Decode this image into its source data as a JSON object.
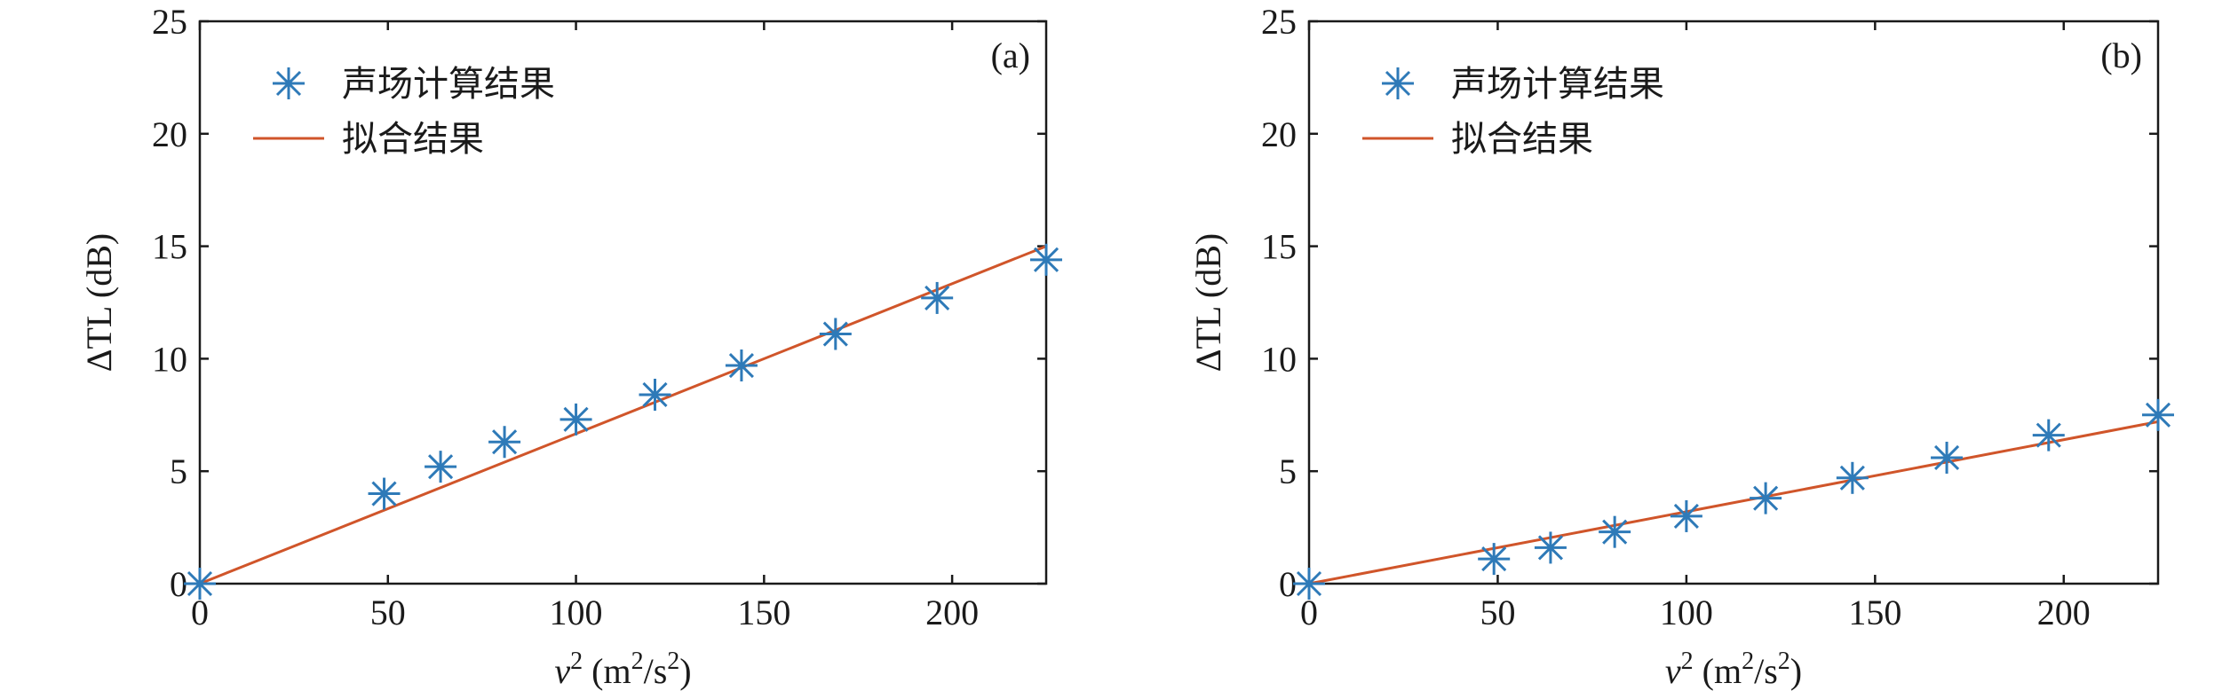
{
  "colors": {
    "marker": "#2e7ab8",
    "line": "#d0552a",
    "axis": "#1a1a1a"
  },
  "chart_data": [
    {
      "type": "scatter",
      "panel_label": "(a)",
      "xlabel_var": "v",
      "xlabel_sup": "2",
      "xlabel_units": " (m",
      "xlabel_units_sup": "2",
      "xlabel_units_mid": "/s",
      "xlabel_units_sup2": "2",
      "xlabel_units_end": ")",
      "ylabel": "ΔTL (dB)",
      "xlim": [
        0,
        225
      ],
      "ylim": [
        0,
        25
      ],
      "xticks": [
        "0",
        "50",
        "100",
        "150",
        "200"
      ],
      "yticks": [
        "0",
        "5",
        "10",
        "15",
        "20",
        "25"
      ],
      "legend": [
        "声场计算结果",
        "拟合结果"
      ],
      "legend_position": "top-left",
      "series": [
        {
          "name": "声场计算结果",
          "kind": "marker",
          "x": [
            0,
            49,
            64,
            81,
            100,
            121,
            144,
            169,
            196,
            225
          ],
          "y": [
            0,
            4.0,
            5.2,
            6.3,
            7.3,
            8.4,
            9.7,
            11.1,
            12.7,
            14.4
          ]
        },
        {
          "name": "拟合结果",
          "kind": "line",
          "x": [
            0,
            225
          ],
          "y": [
            0,
            15.0
          ]
        }
      ]
    },
    {
      "type": "scatter",
      "panel_label": "(b)",
      "xlabel_var": "v",
      "xlabel_sup": "2",
      "xlabel_units": " (m",
      "xlabel_units_sup": "2",
      "xlabel_units_mid": "/s",
      "xlabel_units_sup2": "2",
      "xlabel_units_end": ")",
      "ylabel": "ΔTL (dB)",
      "xlim": [
        0,
        225
      ],
      "ylim": [
        0,
        25
      ],
      "xticks": [
        "0",
        "50",
        "100",
        "150",
        "200"
      ],
      "yticks": [
        "0",
        "5",
        "10",
        "15",
        "20",
        "25"
      ],
      "legend": [
        "声场计算结果",
        "拟合结果"
      ],
      "legend_position": "top-left",
      "series": [
        {
          "name": "声场计算结果",
          "kind": "marker",
          "x": [
            0,
            49,
            64,
            81,
            100,
            121,
            144,
            169,
            196,
            225
          ],
          "y": [
            0,
            1.1,
            1.6,
            2.3,
            3.0,
            3.8,
            4.7,
            5.6,
            6.6,
            7.5
          ]
        },
        {
          "name": "拟合结果",
          "kind": "line",
          "x": [
            0,
            225
          ],
          "y": [
            0,
            7.2
          ]
        }
      ]
    }
  ]
}
